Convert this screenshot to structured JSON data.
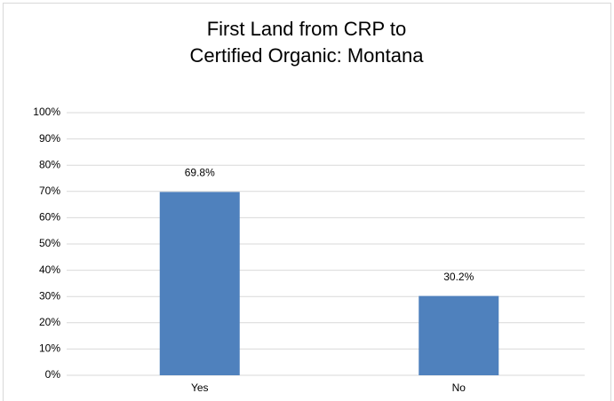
{
  "chart_data": {
    "type": "bar",
    "title": "First Land from CRP to Certified Organic: Montana",
    "categories": [
      "Yes",
      "No"
    ],
    "values": [
      69.8,
      30.2
    ],
    "value_labels": [
      "69.8%",
      "30.2%"
    ],
    "color": "#4f81bd",
    "ylim": [
      0,
      100
    ],
    "yticks": [
      {
        "value": 0,
        "label": "0%"
      },
      {
        "value": 10,
        "label": "10%"
      },
      {
        "value": 20,
        "label": "20%"
      },
      {
        "value": 30,
        "label": "30%"
      },
      {
        "value": 40,
        "label": "40%"
      },
      {
        "value": 50,
        "label": "50%"
      },
      {
        "value": 60,
        "label": "60%"
      },
      {
        "value": 70,
        "label": "70%"
      },
      {
        "value": 80,
        "label": "80%"
      },
      {
        "value": 90,
        "label": "90%"
      },
      {
        "value": 100,
        "label": "100%"
      }
    ],
    "grid": true
  }
}
